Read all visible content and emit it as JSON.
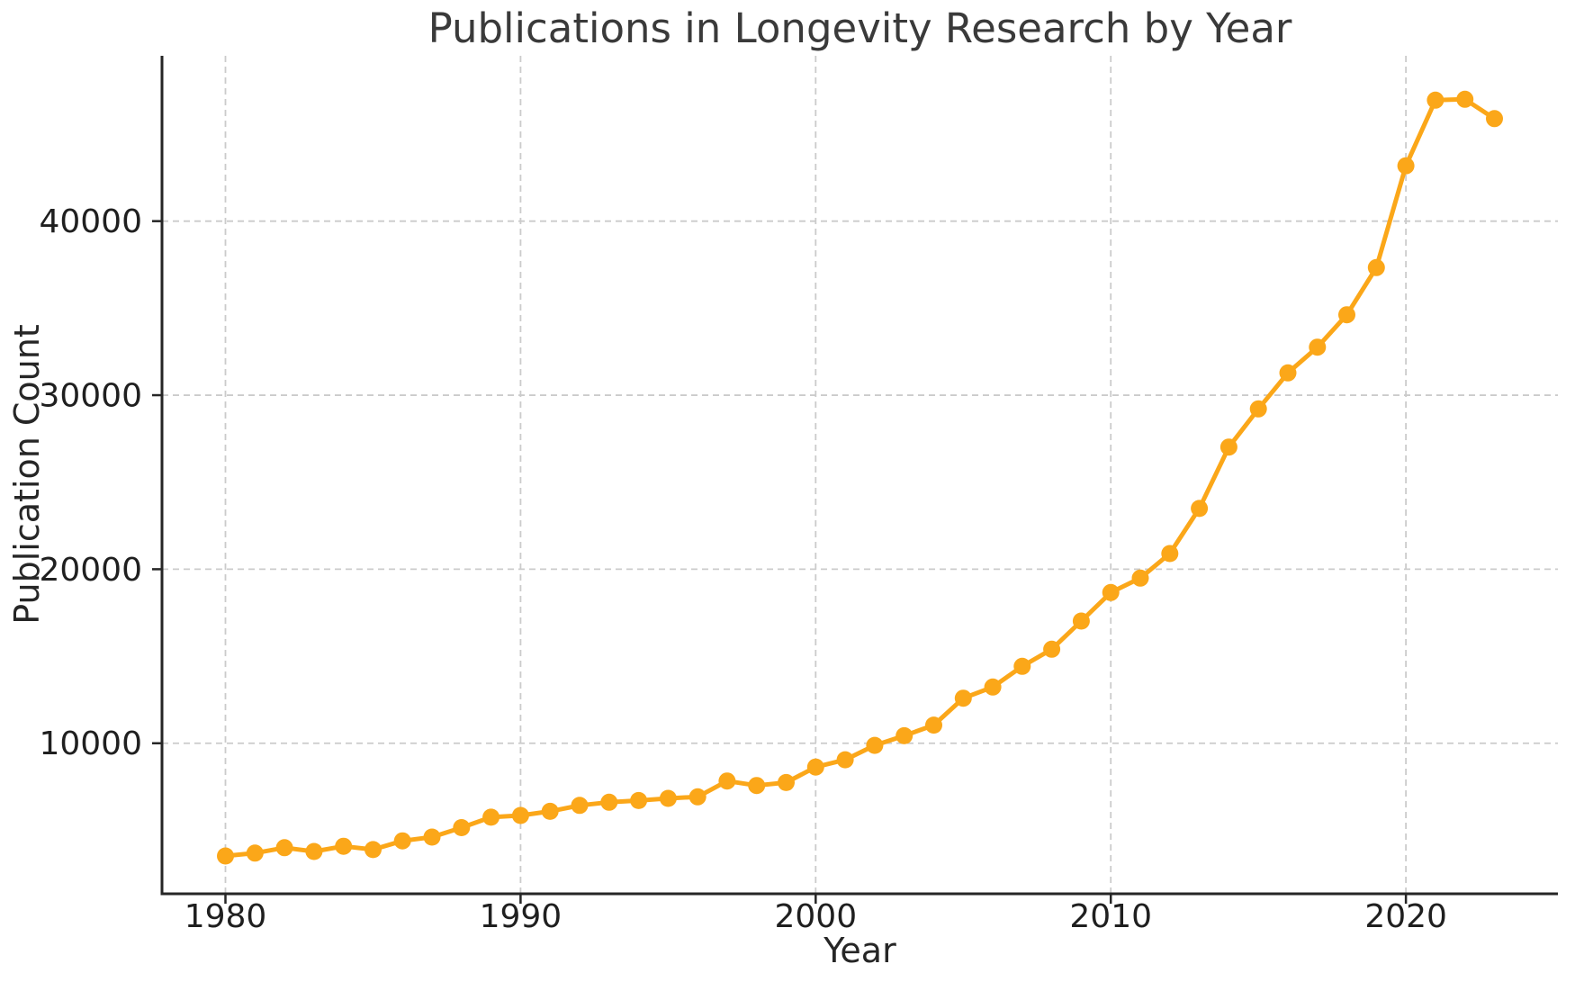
{
  "chart_data": {
    "type": "line",
    "title": "Publications in Longevity Research by Year",
    "xlabel": "Year",
    "ylabel": "Publication Count",
    "legend": "none",
    "grid": "dashed-both-axes",
    "marker": "circle",
    "x": [
      1980,
      1981,
      1982,
      1983,
      1984,
      1985,
      1986,
      1987,
      1988,
      1989,
      1990,
      1991,
      1992,
      1993,
      1994,
      1995,
      1996,
      1997,
      1998,
      1999,
      2000,
      2001,
      2002,
      2003,
      2004,
      2005,
      2006,
      2007,
      2008,
      2009,
      2010,
      2011,
      2012,
      2013,
      2014,
      2015,
      2016,
      2017,
      2018,
      2019,
      2020,
      2021,
      2022,
      2023
    ],
    "series": [
      {
        "name": "Publication Count",
        "values": [
          3520,
          3690,
          4000,
          3780,
          4080,
          3890,
          4390,
          4610,
          5150,
          5750,
          5850,
          6090,
          6430,
          6610,
          6710,
          6830,
          6920,
          7830,
          7570,
          7740,
          8630,
          9050,
          9880,
          10430,
          11040,
          12590,
          13230,
          14420,
          15400,
          17020,
          18660,
          19490,
          20900,
          23490,
          27020,
          29210,
          31280,
          32760,
          34620,
          37330,
          43180,
          46950,
          47000,
          45890
        ]
      }
    ],
    "x_ticks": [
      1980,
      1990,
      2000,
      2010,
      2020
    ],
    "y_ticks": [
      10000,
      20000,
      30000,
      40000
    ],
    "xlim": [
      1977.85,
      2025.15
    ],
    "ylim": [
      1350,
      49500
    ]
  },
  "colors": {
    "line": "#FBA719",
    "marker": "#FBA719",
    "grid": "#CBCBCB",
    "spine": "#262626",
    "tick": "#262626",
    "tick_text": "#1F1F1F",
    "title_text": "#3A3A3A",
    "background": "#FFFFFF"
  }
}
